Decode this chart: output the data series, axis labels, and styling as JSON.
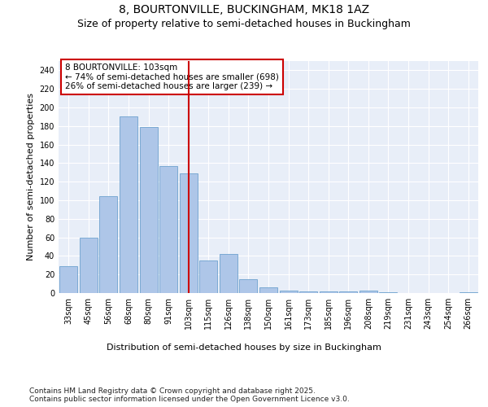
{
  "title": "8, BOURTONVILLE, BUCKINGHAM, MK18 1AZ",
  "subtitle": "Size of property relative to semi-detached houses in Buckingham",
  "xlabel": "Distribution of semi-detached houses by size in Buckingham",
  "ylabel": "Number of semi-detached properties",
  "categories": [
    "33sqm",
    "45sqm",
    "56sqm",
    "68sqm",
    "80sqm",
    "91sqm",
    "103sqm",
    "115sqm",
    "126sqm",
    "138sqm",
    "150sqm",
    "161sqm",
    "173sqm",
    "185sqm",
    "196sqm",
    "208sqm",
    "219sqm",
    "231sqm",
    "243sqm",
    "254sqm",
    "266sqm"
  ],
  "values": [
    29,
    60,
    104,
    190,
    179,
    137,
    129,
    35,
    42,
    15,
    6,
    3,
    2,
    2,
    2,
    3,
    1,
    0,
    0,
    0,
    1
  ],
  "bar_color": "#aec6e8",
  "bar_edge_color": "#5a96c8",
  "subject_bar_index": 6,
  "pct_smaller": 74,
  "pct_smaller_count": 698,
  "pct_larger": 26,
  "pct_larger_count": 239,
  "vline_color": "#cc0000",
  "annotation_box_color": "#cc0000",
  "ylim": [
    0,
    250
  ],
  "yticks": [
    0,
    20,
    40,
    60,
    80,
    100,
    120,
    140,
    160,
    180,
    200,
    220,
    240
  ],
  "background_color": "#e8eef8",
  "grid_color": "#ffffff",
  "footer": "Contains HM Land Registry data © Crown copyright and database right 2025.\nContains public sector information licensed under the Open Government Licence v3.0.",
  "title_fontsize": 10,
  "subtitle_fontsize": 9,
  "axis_label_fontsize": 8,
  "tick_fontsize": 7,
  "annotation_fontsize": 7.5,
  "footer_fontsize": 6.5
}
